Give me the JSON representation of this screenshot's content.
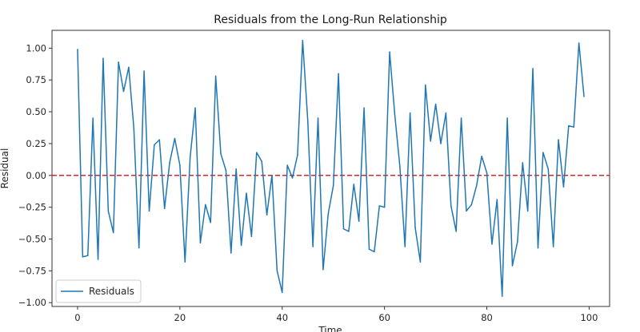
{
  "chart_data": {
    "type": "line",
    "title": "Residuals from the Long-Run Relationship",
    "xlabel": "Time",
    "ylabel": "Residual",
    "xlim": [
      -5,
      104
    ],
    "ylim": [
      -1.03,
      1.14
    ],
    "xticks": [
      0,
      20,
      40,
      60,
      80,
      100
    ],
    "yticks": [
      -1.0,
      -0.75,
      -0.5,
      -0.25,
      0.0,
      0.25,
      0.5,
      0.75,
      1.0
    ],
    "ytick_labels": [
      "−1.00",
      "−0.75",
      "−0.50",
      "−0.25",
      "0.00",
      "0.25",
      "0.50",
      "0.75",
      "1.00"
    ],
    "xtick_labels": [
      "0",
      "20",
      "40",
      "60",
      "80",
      "100"
    ],
    "grid": false,
    "legend_position": "lower-left",
    "reference_line": {
      "y": 0,
      "color": "#d62728",
      "style": "dashed"
    },
    "series": [
      {
        "name": "Residuals",
        "color": "#1f77b4",
        "x": [
          0,
          1,
          2,
          3,
          4,
          5,
          6,
          7,
          8,
          9,
          10,
          11,
          12,
          13,
          14,
          15,
          16,
          17,
          18,
          19,
          20,
          21,
          22,
          23,
          24,
          25,
          26,
          27,
          28,
          29,
          30,
          31,
          32,
          33,
          34,
          35,
          36,
          37,
          38,
          39,
          40,
          41,
          42,
          43,
          44,
          45,
          46,
          47,
          48,
          49,
          50,
          51,
          52,
          53,
          54,
          55,
          56,
          57,
          58,
          59,
          60,
          61,
          62,
          63,
          64,
          65,
          66,
          67,
          68,
          69,
          70,
          71,
          72,
          73,
          74,
          75,
          76,
          77,
          78,
          79,
          80,
          81,
          82,
          83,
          84,
          85,
          86,
          87,
          88,
          89,
          90,
          91,
          92,
          93,
          94,
          95,
          96,
          97,
          98,
          99
        ],
        "values": [
          0.99,
          -0.64,
          -0.63,
          0.45,
          -0.66,
          0.92,
          -0.28,
          -0.45,
          0.89,
          0.66,
          0.85,
          0.37,
          -0.57,
          0.82,
          -0.28,
          0.24,
          0.28,
          -0.26,
          0.1,
          0.29,
          0.08,
          -0.68,
          0.14,
          0.53,
          -0.53,
          -0.23,
          -0.37,
          0.78,
          0.17,
          0.04,
          -0.61,
          0.05,
          -0.55,
          -0.14,
          -0.48,
          0.18,
          0.11,
          -0.31,
          0.0,
          -0.75,
          -0.92,
          0.08,
          -0.02,
          0.16,
          1.06,
          0.43,
          -0.56,
          0.45,
          -0.74,
          -0.3,
          -0.08,
          0.8,
          -0.42,
          -0.44,
          -0.07,
          -0.36,
          0.53,
          -0.58,
          -0.6,
          -0.24,
          -0.25,
          0.97,
          0.48,
          0.07,
          -0.56,
          0.49,
          -0.41,
          -0.68,
          0.71,
          0.27,
          0.56,
          0.25,
          0.49,
          -0.24,
          -0.44,
          0.45,
          -0.28,
          -0.23,
          -0.08,
          0.15,
          0.02,
          -0.54,
          -0.19,
          -0.95,
          0.45,
          -0.71,
          -0.52,
          0.1,
          -0.28,
          0.84,
          -0.57,
          0.18,
          0.05,
          -0.56,
          0.28,
          -0.09,
          0.39,
          0.38,
          1.04,
          0.62
        ]
      }
    ]
  }
}
